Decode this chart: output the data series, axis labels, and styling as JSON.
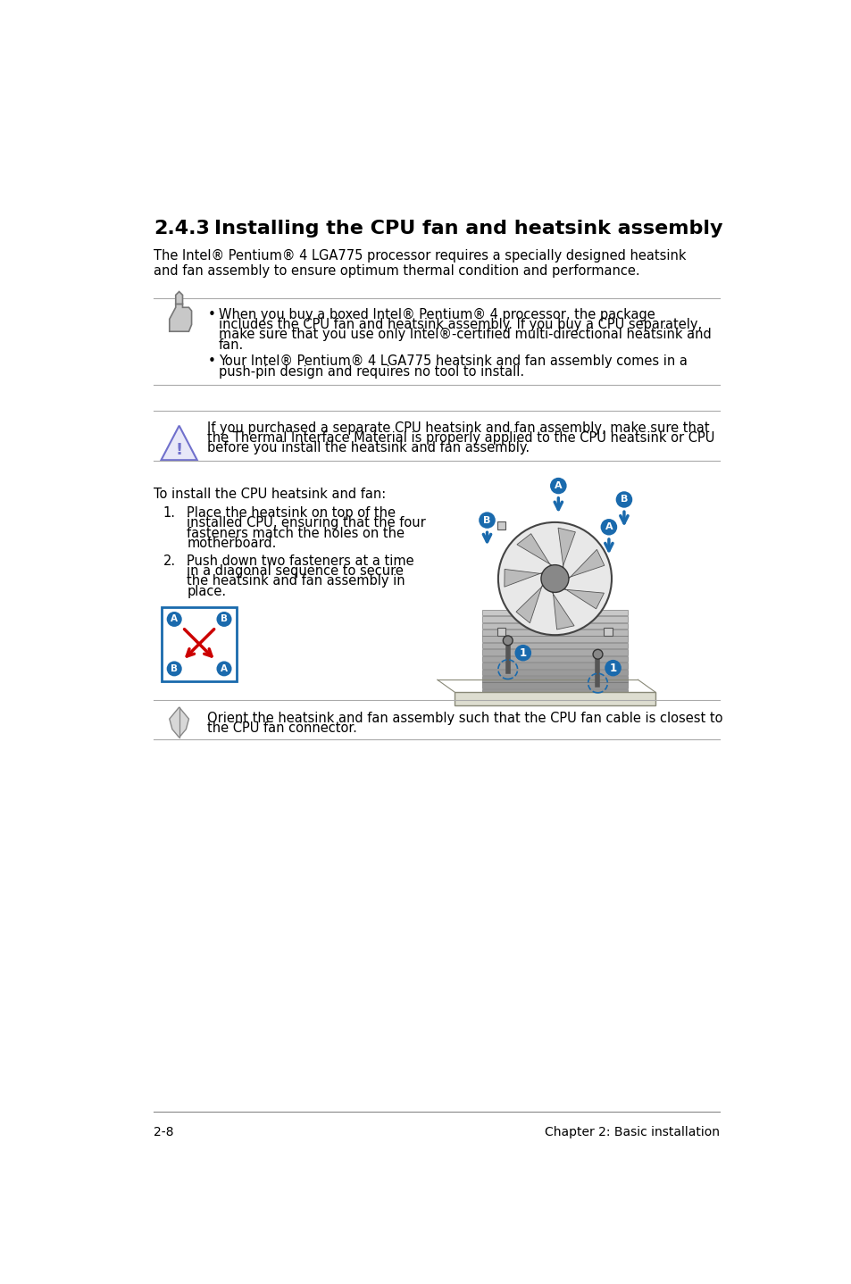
{
  "bg_color": "#ffffff",
  "title_number": "2.4.3",
  "title_text": "Installing the CPU fan and heatsink assembly",
  "intro_text": "The Intel® Pentium® 4 LGA775 processor requires a specially designed heatsink\nand fan assembly to ensure optimum thermal condition and performance.",
  "note_bullets": [
    "When you buy a boxed Intel® Pentium® 4 processor, the package includes the CPU fan and heatsink assembly. If you buy a CPU separately, make sure that you use only Intel®-certified multi-directional heatsink and fan.",
    "Your Intel® Pentium® 4 LGA775 heatsink and fan assembly comes in a push-pin design and requires no tool to install."
  ],
  "warning_text": "If you purchased a separate CPU heatsink and fan assembly, make sure that the Thermal Interface Material is properly applied to the CPU heatsink or CPU before you install the heatsink and fan assembly.",
  "install_intro": "To install the CPU heatsink and fan:",
  "step1_lines": [
    "Place the heatsink on top of the",
    "installed CPU, ensuring that the four",
    "fasteners match the holes on the",
    "motherboard."
  ],
  "step2_lines": [
    "Push down two fasteners at a time",
    "in a diagonal sequence to secure",
    "the heatsink and fan assembly in",
    "place."
  ],
  "note2_lines": [
    "Orient the heatsink and fan assembly such that the CPU fan cable is closest to",
    "the CPU fan connector."
  ],
  "footer_left": "2-8",
  "footer_right": "Chapter 2: Basic installation",
  "text_color": "#000000",
  "line_color": "#aaaaaa",
  "blue_color": "#1a6aad",
  "red_color": "#cc0000",
  "warn_blue": "#7070cc"
}
